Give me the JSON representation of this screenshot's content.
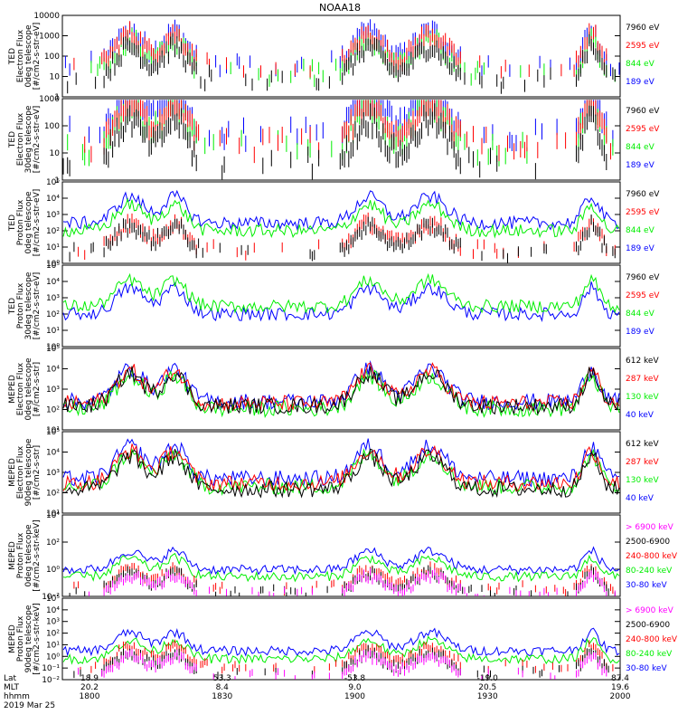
{
  "title": "NOAA18",
  "colors": {
    "black": "#000000",
    "red": "#ff0000",
    "green": "#00ee00",
    "blue": "#0000ff",
    "magenta": "#ff00ff"
  },
  "x_axis": {
    "row_labels": [
      "Lat",
      "MLT",
      "hhmm"
    ],
    "date": "2019 Mar 25",
    "ticks": [
      {
        "lat": "18.9",
        "mlt": "20.2",
        "hhmm": "1800"
      },
      {
        "lat": "53.3",
        "mlt": "8.4",
        "hhmm": "1830"
      },
      {
        "lat": "-53.8",
        "mlt": "9.0",
        "hhmm": "1900"
      },
      {
        "lat": "-19.0",
        "mlt": "20.5",
        "hhmm": "1930"
      },
      {
        "lat": "87.4",
        "mlt": "19.6",
        "hhmm": "2000"
      }
    ]
  },
  "chart_data": [
    {
      "type": "line",
      "panel_label": [
        "TED",
        "Electron Flux",
        "0deg telescope",
        "[#/cm2-s-str-eV]"
      ],
      "yscale": "log",
      "ylim": [
        1,
        10000
      ],
      "y_ticks": [
        "1",
        "10",
        "100",
        "1000",
        "10000"
      ],
      "series": [
        {
          "name": "7960 eV",
          "color": "#000000",
          "kind": "bursts",
          "level": 14
        },
        {
          "name": "2595 eV",
          "color": "#ff0000",
          "kind": "bursts",
          "level": 60
        },
        {
          "name": "844 eV",
          "color": "#00ee00",
          "kind": "bursts",
          "level": 30
        },
        {
          "name": "189 eV",
          "color": "#0000ff",
          "kind": "bursts",
          "level": 80
        }
      ]
    },
    {
      "type": "line",
      "panel_label": [
        "TED",
        "Electron Flux",
        "30deg telescope",
        "[#/cm2-s-str-eV]"
      ],
      "yscale": "log",
      "ylim": [
        1,
        1000
      ],
      "y_ticks": [
        "1",
        "10",
        "100",
        "1000"
      ],
      "series": [
        {
          "name": "7960 eV",
          "color": "#000000",
          "kind": "bursts",
          "level": 8
        },
        {
          "name": "2595 eV",
          "color": "#ff0000",
          "kind": "bursts",
          "level": 40
        },
        {
          "name": "844 eV",
          "color": "#00ee00",
          "kind": "bursts",
          "level": 30
        },
        {
          "name": "189 eV",
          "color": "#0000ff",
          "kind": "bursts",
          "level": 100
        }
      ]
    },
    {
      "type": "line",
      "panel_label": [
        "TED",
        "Proton Flux",
        "0deg telescope",
        "[#/cm2-s-str-eV]"
      ],
      "yscale": "log",
      "ylim": [
        1,
        100000
      ],
      "y_ticks": [
        "10⁰",
        "10¹",
        "10²",
        "10³",
        "10⁴",
        "10⁵"
      ],
      "series": [
        {
          "name": "7960 eV",
          "color": "#000000",
          "kind": "bursts",
          "level": 10
        },
        {
          "name": "2595 eV",
          "color": "#ff0000",
          "kind": "bursts",
          "level": 15
        },
        {
          "name": "844 eV",
          "color": "#00ee00",
          "kind": "noise",
          "level": 100
        },
        {
          "name": "189 eV",
          "color": "#0000ff",
          "kind": "noise",
          "level": 300
        }
      ]
    },
    {
      "type": "line",
      "panel_label": [
        "TED",
        "Proton Flux",
        "30deg telescope",
        "[#/cm2-s-str-eV]"
      ],
      "yscale": "log",
      "ylim": [
        1,
        100000
      ],
      "y_ticks": [
        "10⁰",
        "10¹",
        "10²",
        "10³",
        "10⁴",
        "10⁵"
      ],
      "series": [
        {
          "name": "7960 eV",
          "color": "#000000",
          "kind": "none",
          "level": 0
        },
        {
          "name": "2595 eV",
          "color": "#ff0000",
          "kind": "none",
          "level": 0
        },
        {
          "name": "844 eV",
          "color": "#00ee00",
          "kind": "noise",
          "level": 300
        },
        {
          "name": "189 eV",
          "color": "#0000ff",
          "kind": "noise",
          "level": 100
        }
      ]
    },
    {
      "type": "line",
      "panel_label": [
        "MEPED",
        "Electron Flux",
        "0deg telescope",
        "[#/cm2-s-str]"
      ],
      "yscale": "log",
      "ylim": [
        10,
        100000
      ],
      "y_ticks": [
        "10¹",
        "10²",
        "10³",
        "10⁴",
        "10⁵"
      ],
      "series": [
        {
          "name": "612 keV",
          "color": "#000000",
          "kind": "noise",
          "level": 150
        },
        {
          "name": "287 keV",
          "color": "#ff0000",
          "kind": "noise",
          "level": 200
        },
        {
          "name": "130 keV",
          "color": "#00ee00",
          "kind": "noise",
          "level": 110
        },
        {
          "name": "40 keV",
          "color": "#0000ff",
          "kind": "noise",
          "level": 250
        }
      ]
    },
    {
      "type": "line",
      "panel_label": [
        "MEPED",
        "Electron Flux",
        "90deg telescope",
        "[#/cm2-s-str]"
      ],
      "yscale": "log",
      "ylim": [
        10,
        100000
      ],
      "y_ticks": [
        "10¹",
        "10²",
        "10³",
        "10⁴",
        "10⁵"
      ],
      "series": [
        {
          "name": "612 keV",
          "color": "#000000",
          "kind": "noise",
          "level": 150
        },
        {
          "name": "287 keV",
          "color": "#ff0000",
          "kind": "noise",
          "level": 300
        },
        {
          "name": "130 keV",
          "color": "#00ee00",
          "kind": "noise",
          "level": 200
        },
        {
          "name": "40 keV",
          "color": "#0000ff",
          "kind": "noise",
          "level": 500
        }
      ]
    },
    {
      "type": "line",
      "panel_label": [
        "MEPED",
        "Proton Flux",
        "0deg telescope",
        "[#/cm2-s-str-keV]"
      ],
      "yscale": "log",
      "ylim": [
        0.01,
        100000
      ],
      "y_ticks": [
        "10⁻²",
        "10⁰",
        "10²",
        "10⁴"
      ],
      "series": [
        {
          "name": "> 6900 keV",
          "color": "#ff00ff",
          "kind": "bursts",
          "level": 0.03
        },
        {
          "name": "2500-6900",
          "color": "#000000",
          "kind": "bursts",
          "level": 0.05
        },
        {
          "name": "240-800 keV",
          "color": "#ff0000",
          "kind": "bursts",
          "level": 0.1
        },
        {
          "name": "80-240 keV",
          "color": "#00ee00",
          "kind": "noise",
          "level": 0.5
        },
        {
          "name": "30-80 keV",
          "color": "#0000ff",
          "kind": "noise",
          "level": 2
        }
      ]
    },
    {
      "type": "line",
      "panel_label": [
        "MEPED",
        "Proton Flux",
        "90deg telescope",
        "[#/cm2-s-str-keV]"
      ],
      "yscale": "log",
      "ylim": [
        0.01,
        100000
      ],
      "y_ticks": [
        "10⁻²",
        "10⁻¹",
        "10⁰",
        "10¹",
        "10²",
        "10³",
        "10⁴",
        "10⁵"
      ],
      "series": [
        {
          "name": "> 6900 keV",
          "color": "#ff00ff",
          "kind": "bursts",
          "level": 0.05
        },
        {
          "name": "2500-6900",
          "color": "#000000",
          "kind": "bursts",
          "level": 0.1
        },
        {
          "name": "240-800 keV",
          "color": "#ff0000",
          "kind": "bursts",
          "level": 0.3
        },
        {
          "name": "80-240 keV",
          "color": "#00ee00",
          "kind": "noise",
          "level": 0.6
        },
        {
          "name": "30-80 keV",
          "color": "#0000ff",
          "kind": "noise",
          "level": 3
        }
      ]
    }
  ]
}
